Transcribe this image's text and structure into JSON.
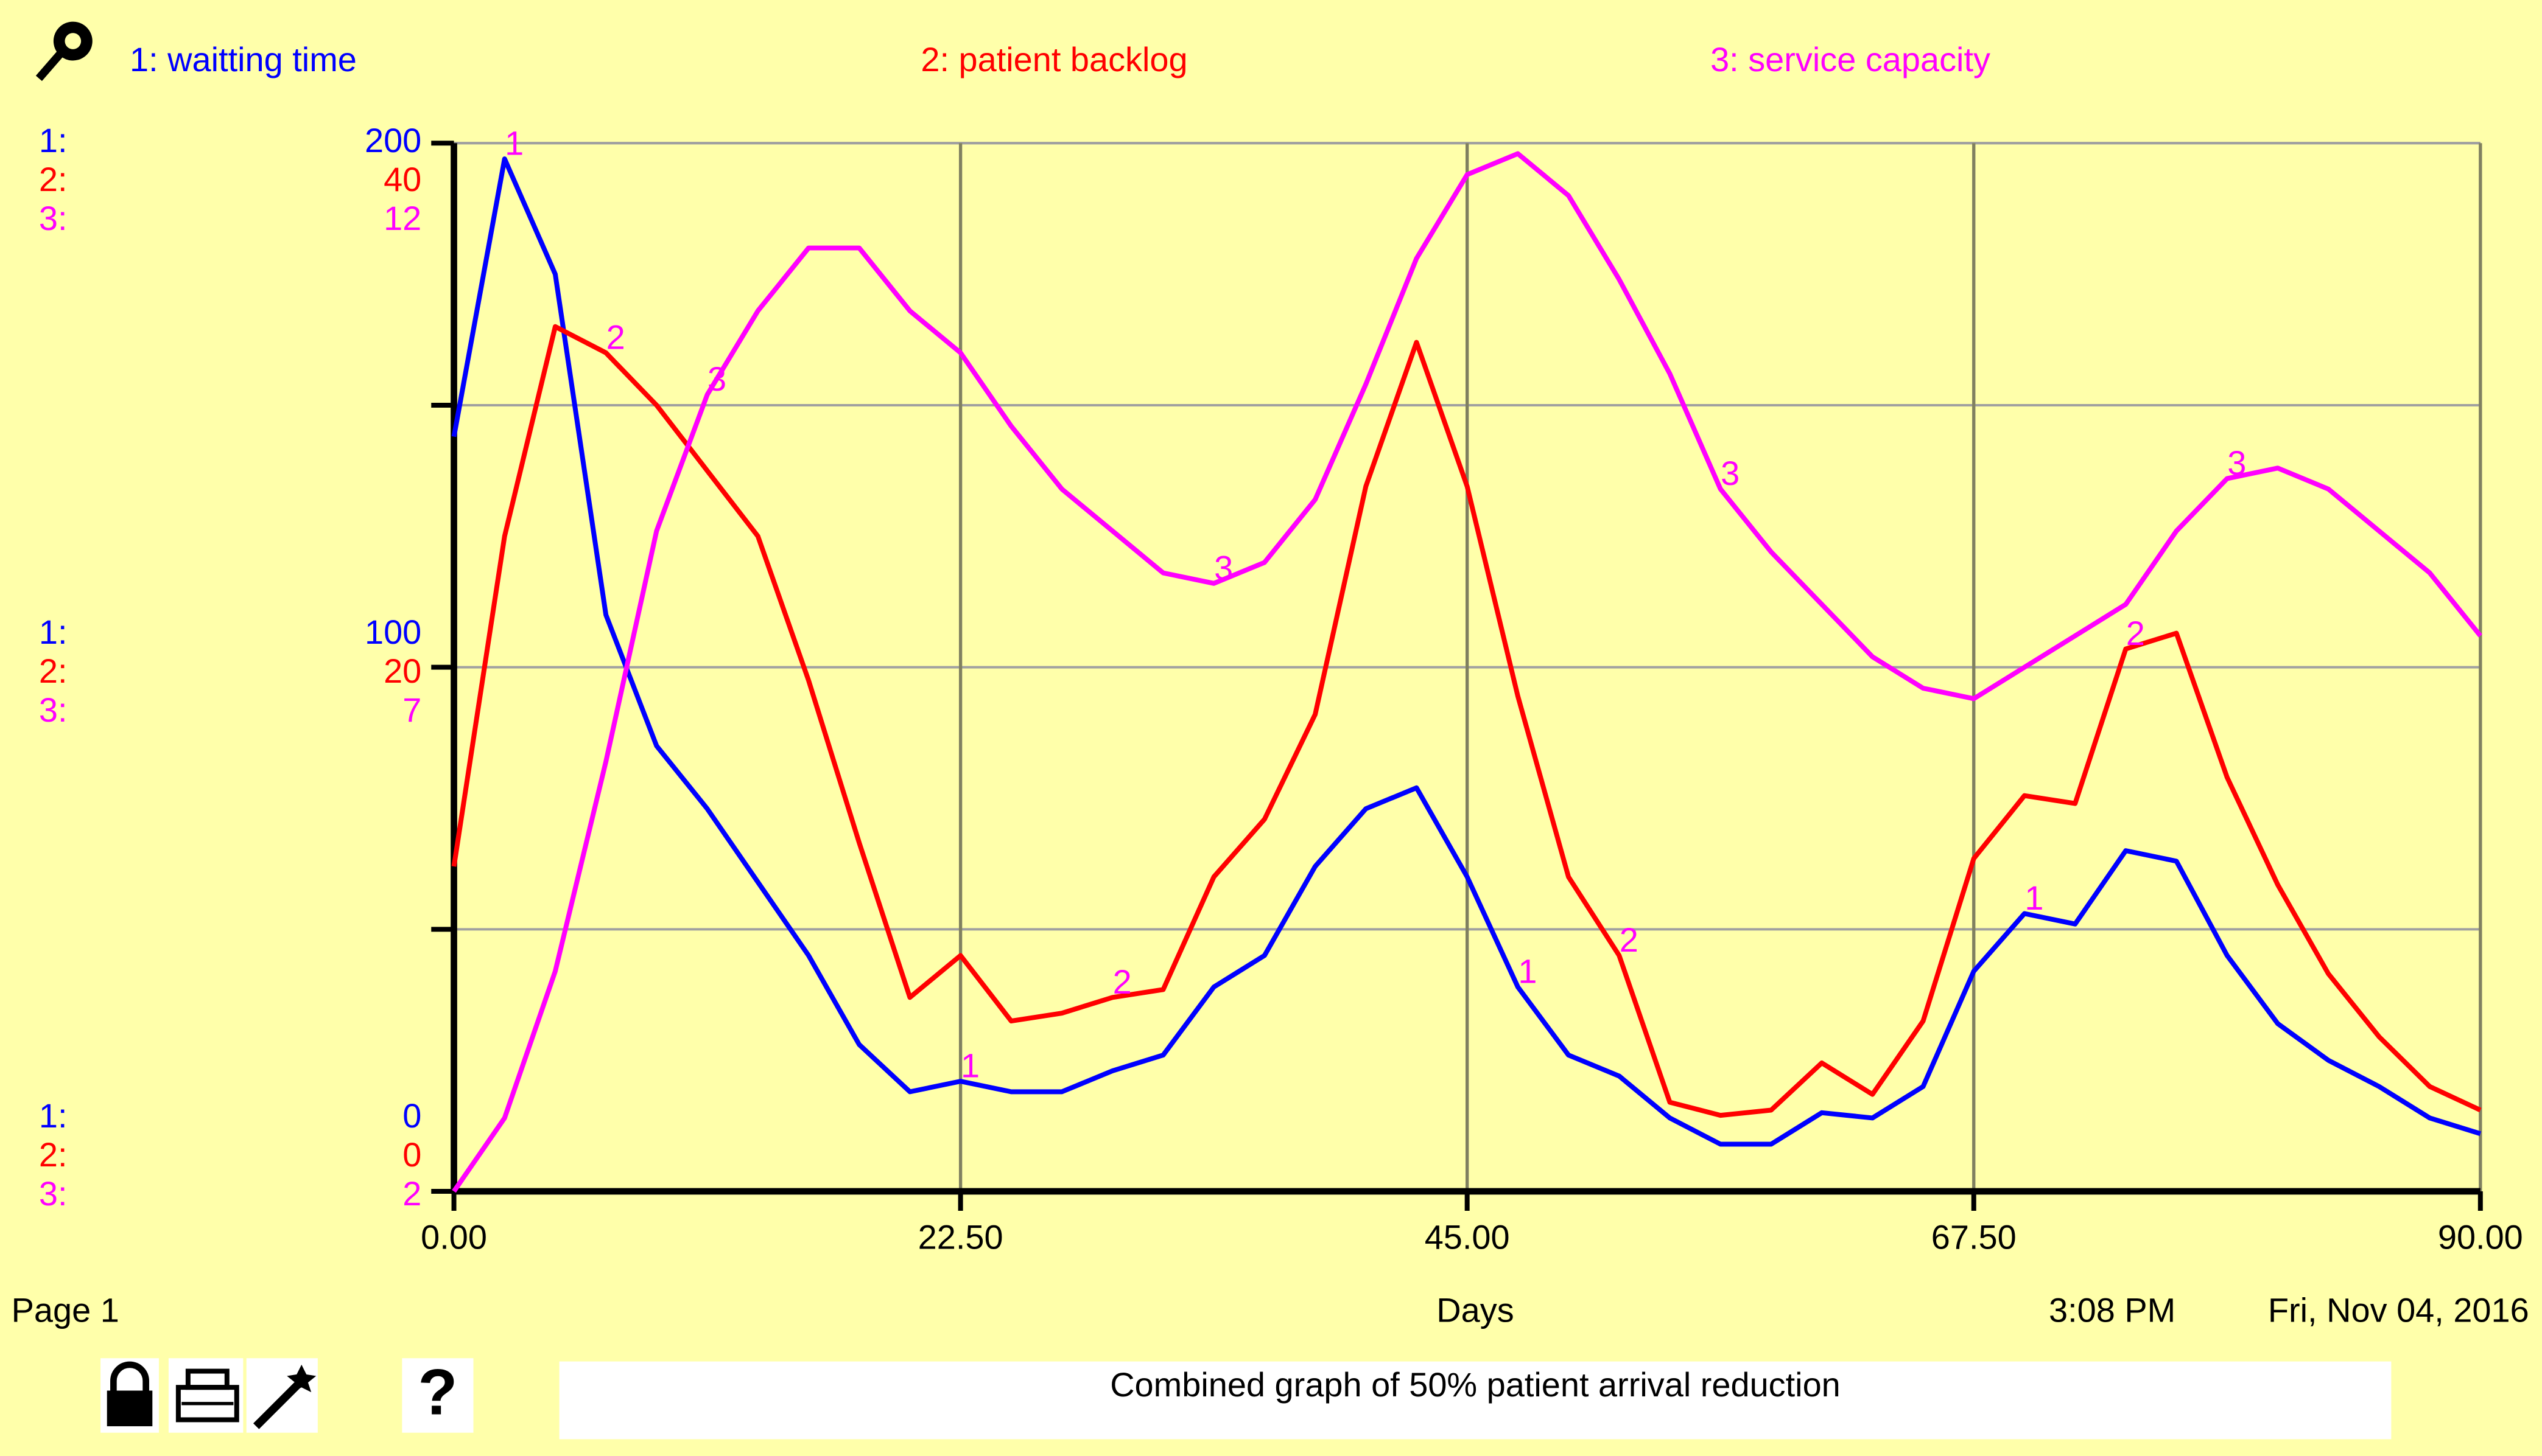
{
  "chart_data": {
    "type": "line",
    "x": [
      0,
      2.25,
      4.5,
      6.75,
      9,
      11.25,
      13.5,
      15.75,
      18,
      20.25,
      22.5,
      24.75,
      27,
      29.25,
      31.5,
      33.75,
      36,
      38.25,
      40.5,
      42.75,
      45,
      47.25,
      49.5,
      51.75,
      54,
      56.25,
      58.5,
      60.75,
      63,
      65.25,
      67.5,
      69.75,
      72,
      74.25,
      76.5,
      78.75,
      81,
      83.25,
      85.5,
      87.75,
      90
    ],
    "xlim": [
      0,
      90
    ],
    "xticks": [
      {
        "value": 0,
        "label": "0.00"
      },
      {
        "value": 22.5,
        "label": "22.50"
      },
      {
        "value": 45,
        "label": "45.00"
      },
      {
        "value": 67.5,
        "label": "67.50"
      },
      {
        "value": 90,
        "label": "90.00"
      }
    ],
    "xlabel": "Days",
    "grid": true,
    "series": [
      {
        "name": "1: waitting time",
        "axis_label": "1:",
        "marker": "1",
        "color": "#0000ff",
        "ylim": [
          0,
          200
        ],
        "yticks": [
          0,
          100,
          200
        ],
        "values": [
          144,
          197,
          175,
          110,
          85,
          73,
          59,
          45,
          28,
          19,
          21,
          19,
          19,
          23,
          26,
          39,
          45,
          62,
          73,
          77,
          60,
          39,
          26,
          22,
          14,
          9,
          9,
          15,
          14,
          20,
          42,
          53,
          51,
          65,
          63,
          45,
          32,
          25,
          20,
          14,
          11
        ]
      },
      {
        "name": "2: patient backlog",
        "axis_label": "2:",
        "marker": "2",
        "color": "#ff0000",
        "ylim": [
          0,
          40
        ],
        "yticks": [
          0,
          20,
          40
        ],
        "values": [
          12.4,
          25,
          33,
          32,
          30,
          27.5,
          25,
          19.5,
          13.3,
          7.4,
          9,
          6.5,
          6.8,
          7.4,
          7.7,
          12,
          14.2,
          18.2,
          26.9,
          32.4,
          26.9,
          18.9,
          12,
          9,
          3.4,
          2.9,
          3.1,
          4.9,
          3.7,
          6.5,
          12.7,
          15.1,
          14.8,
          20.7,
          21.3,
          15.8,
          11.7,
          8.3,
          5.9,
          4,
          3.1
        ]
      },
      {
        "name": "3: service capacity",
        "axis_label": "3:",
        "marker": "3",
        "color": "#ff00ff",
        "ylim": [
          2,
          12
        ],
        "yticks": [
          2,
          7,
          12
        ],
        "values": [
          2,
          2.7,
          4.1,
          6.1,
          8.3,
          9.6,
          10.4,
          11,
          11,
          10.4,
          10,
          9.3,
          8.7,
          8.3,
          7.9,
          7.8,
          8,
          8.6,
          9.7,
          10.9,
          11.7,
          11.9,
          11.5,
          10.7,
          9.8,
          8.7,
          8.1,
          7.6,
          7.1,
          6.8,
          6.7,
          7,
          7.3,
          7.6,
          8.3,
          8.8,
          8.9,
          8.7,
          8.3,
          7.9,
          7.3
        ]
      }
    ],
    "page": "Page 1",
    "time": "3:08 PM",
    "date": "Fri, Nov 04, 2016",
    "caption": "Combined graph of 50% patient arrival reduction"
  }
}
